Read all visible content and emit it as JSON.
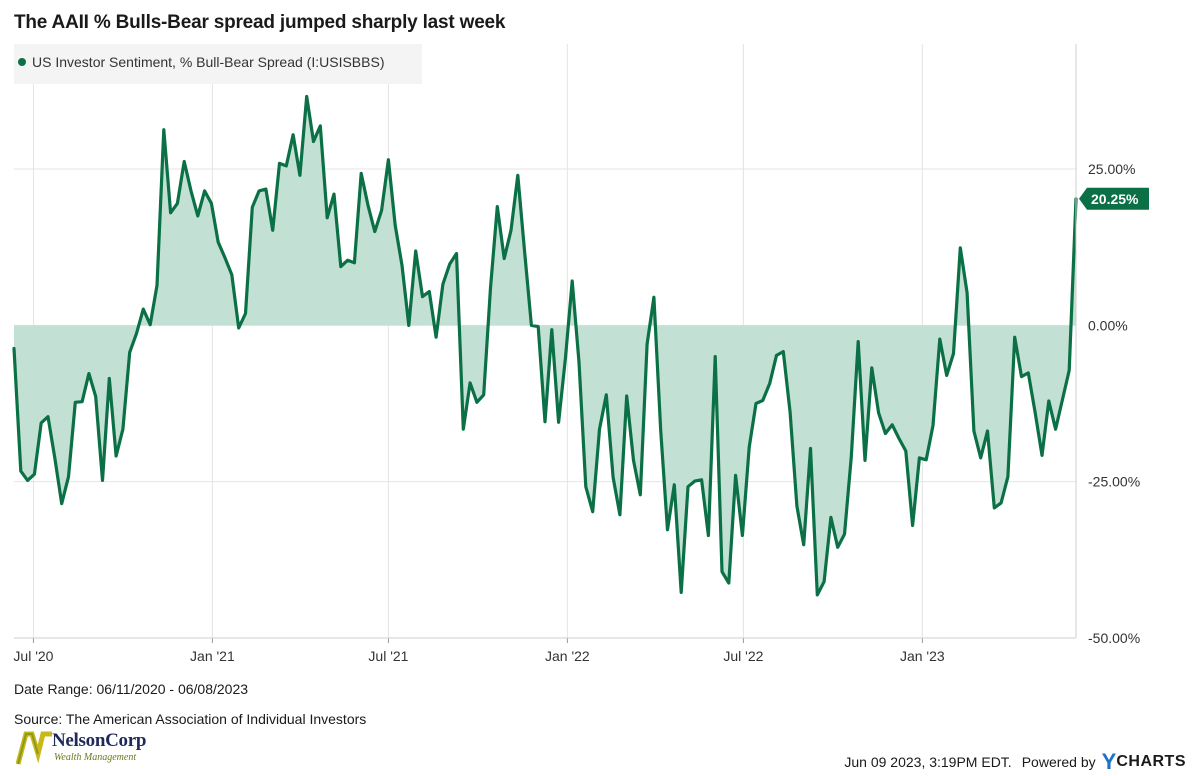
{
  "title": "The AAII % Bulls-Bear spread jumped sharply last week",
  "legend_label": "US Investor Sentiment, % Bull-Bear Spread (I:USISBBS)",
  "callout_value": "20.25%",
  "footer": {
    "date_range": "Date Range: 06/11/2020 - 06/08/2023",
    "source": "Source: The American Association of Individual Investors",
    "timestamp": "Jun 09 2023, 3:19PM EDT.",
    "powered_by": "Powered by",
    "brand_y": "Y",
    "brand_rest": "CHARTS"
  },
  "logo": {
    "name": "NelsonCorp",
    "tagline": "Wealth Management"
  },
  "colors": {
    "line": "#0b7045",
    "fill": "#c2e0d3",
    "callout": "#0b7045",
    "grid": "#e4e4e4"
  },
  "chart_data": {
    "type": "area",
    "title": "The AAII % Bulls-Bear spread jumped sharply last week",
    "series": [
      {
        "name": "US Investor Sentiment, % Bull-Bear Spread (I:USISBBS)",
        "x_start": "2020-06-11",
        "x_step_days": 7,
        "values": [
          -3.7,
          -23.3,
          -24.8,
          -23.8,
          -15.6,
          -14.6,
          -21.2,
          -28.5,
          -24.2,
          -12.3,
          -12.2,
          -7.7,
          -11.4,
          -24.8,
          -8.5,
          -20.9,
          -16.6,
          -4.3,
          -1.3,
          2.6,
          0.1,
          6.4,
          31.3,
          18.0,
          19.5,
          26.2,
          21.5,
          17.5,
          21.5,
          19.5,
          13.3,
          10.8,
          8.1,
          -0.4,
          1.9,
          18.9,
          21.5,
          21.8,
          15.2,
          25.9,
          25.5,
          30.5,
          24.0,
          36.6,
          29.4,
          31.9,
          17.2,
          21.0,
          9.4,
          10.4,
          10.0,
          24.3,
          19.2,
          15.0,
          18.4,
          26.5,
          16.0,
          9.6,
          0.0,
          11.9,
          4.6,
          5.4,
          -1.9,
          6.6,
          9.8,
          11.5,
          -16.6,
          -9.2,
          -12.3,
          -11.1,
          6.0,
          19.0,
          10.7,
          15.2,
          24.0,
          11.8,
          0.0,
          -0.2,
          -15.4,
          -0.7,
          -15.5,
          -5.3,
          7.1,
          -5.9,
          -25.8,
          -29.8,
          -16.6,
          -11.1,
          -24.3,
          -30.3,
          -11.3,
          -21.6,
          -27.1,
          -3.0,
          4.5,
          -16.8,
          -32.7,
          -25.5,
          -42.7,
          -25.8,
          -24.9,
          -24.7,
          -33.6,
          -5.0,
          -39.4,
          -41.2,
          -24.0,
          -33.6,
          -19.5,
          -12.5,
          -12.0,
          -9.3,
          -4.8,
          -4.2,
          -13.9,
          -28.9,
          -35.1,
          -19.7,
          -43.1,
          -41.0,
          -30.7,
          -35.5,
          -33.4,
          -21.0,
          -2.6,
          -21.6,
          -6.8,
          -14.0,
          -17.3,
          -15.9,
          -18.1,
          -20.1,
          -32.0,
          -21.2,
          -21.5,
          -16.0,
          -2.2,
          -8.0,
          -4.5,
          12.4,
          5.2,
          -16.9,
          -21.2,
          -16.9,
          -29.2,
          -28.4,
          -24.2,
          -1.9,
          -8.2,
          -7.6,
          -14.0,
          -20.8,
          -12.1,
          -16.6,
          -11.9,
          -7.2,
          20.25
        ]
      }
    ],
    "x_ticks": [
      "Jul '20",
      "Jan '21",
      "Jul '21",
      "Jan '22",
      "Jul '22",
      "Jan '23"
    ],
    "x_tick_dates": [
      "2020-07-01",
      "2021-01-01",
      "2021-07-01",
      "2022-01-01",
      "2022-07-01",
      "2023-01-01"
    ],
    "y_ticks": [
      "25.00%",
      "0.00%",
      "-25.00%",
      "-50.00%"
    ],
    "y_tick_values": [
      25,
      0,
      -25,
      -50
    ],
    "ylim": [
      -50,
      45
    ],
    "xlim": [
      "2020-06-11",
      "2023-06-08"
    ],
    "last_value": 20.25,
    "grid": true,
    "legend_position": "top-left",
    "y_axis_side": "right"
  }
}
